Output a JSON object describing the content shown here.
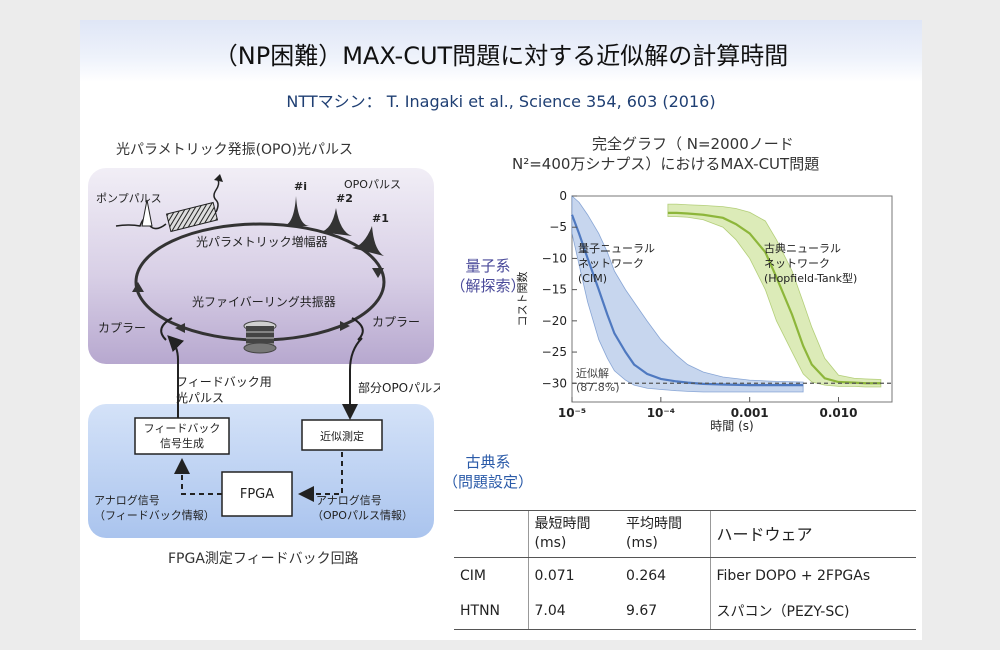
{
  "slide": {
    "title": "（NP困難）MAX-CUT問題に対する近似解の計算時間",
    "subtitle": "NTTマシン：  T. Inagaki et al., Science 354, 603 (2016)"
  },
  "opo_diagram": {
    "title": "光パラメトリック発振(OPO)光パルス",
    "pump_pulse": "ポンプパルス",
    "opo_pulse": "OPOパルス",
    "pulse_i": "#i",
    "pulse_2": "#2",
    "pulse_1": "#1",
    "amplifier": "光パラメトリック増幅器",
    "ring": "光ファイバーリング共振器",
    "coupler_left": "カプラー",
    "coupler_right": "カプラー",
    "feedback_light_1": "フィードバック用",
    "feedback_light_2": "光パルス",
    "partial_opo": "部分OPOパルス",
    "feedback_gen_1": "フィードバック",
    "feedback_gen_2": "信号生成",
    "approx_measure": "近似測定",
    "fpga": "FPGA",
    "analog_left_1": "アナログ信号",
    "analog_left_2": "（フィードバック情報）",
    "analog_right_1": "アナログ信号",
    "analog_right_2": "（OPOパルス情報）",
    "caption": "FPGA測定フィードバック回路"
  },
  "labels": {
    "quantum_1": "量子系",
    "quantum_2": "（解探索）",
    "classical_1": "古典系",
    "classical_2": "（問題設定）"
  },
  "graph_title": {
    "line1": "完全グラフ（ N=2000ノード",
    "line2": "N²=400万シナプス）におけるMAX-CUT問題"
  },
  "chart_data": {
    "type": "line",
    "xscale": "log",
    "xlabel": "時間 (s)",
    "ylabel": "コスト関数",
    "xlim": [
      1e-05,
      0.04
    ],
    "ylim": [
      -33,
      0
    ],
    "xticks": [
      {
        "value": 1e-05,
        "label": "10⁻⁵"
      },
      {
        "value": 0.0001,
        "label": "10⁻⁴"
      },
      {
        "value": 0.001,
        "label": "0.001"
      },
      {
        "value": 0.01,
        "label": "0.010"
      }
    ],
    "yticks": [
      0,
      -5,
      -10,
      -15,
      -20,
      -25,
      -30
    ],
    "reference_line": {
      "y": -30,
      "label_1": "近似解",
      "label_2": "(87.8%)"
    },
    "series": [
      {
        "name_1": "量子ニューラル",
        "name_2": "ネットワーク",
        "name_3": "(CIM)",
        "color": "#4f79c0",
        "band_color": "#c7d6ee",
        "x": [
          1e-05,
          1.2e-05,
          1.5e-05,
          2e-05,
          2.5e-05,
          3e-05,
          4e-05,
          5e-05,
          7e-05,
          0.0001,
          0.00015,
          0.0002,
          0.0003,
          0.0005,
          0.001,
          0.002,
          0.004
        ],
        "y": [
          -3,
          -6,
          -10,
          -15,
          -19,
          -22,
          -25,
          -27,
          -28.5,
          -29.3,
          -29.7,
          -29.9,
          -30.1,
          -30.2,
          -30.3,
          -30.3,
          -30.3
        ],
        "upper": [
          0,
          -1,
          -3,
          -6,
          -9,
          -12,
          -15,
          -17,
          -20,
          -23,
          -25.5,
          -27,
          -28.2,
          -29,
          -29.5,
          -29.7,
          -29.8
        ],
        "lower": [
          -6,
          -11,
          -17,
          -23,
          -26,
          -28,
          -29.5,
          -30.3,
          -30.8,
          -31,
          -31.2,
          -31.3,
          -31.4,
          -31.4,
          -31.4,
          -31.4,
          -31.4
        ]
      },
      {
        "name_1": "古典ニューラル",
        "name_2": "ネットワーク",
        "name_3": "(Hopfield-Tank型)",
        "color": "#8db63a",
        "band_color": "#dcebb8",
        "x": [
          0.00012,
          0.00015,
          0.0002,
          0.0003,
          0.0005,
          0.0007,
          0.001,
          0.0015,
          0.002,
          0.003,
          0.004,
          0.005,
          0.007,
          0.01,
          0.015,
          0.02,
          0.03
        ],
        "y": [
          -2.7,
          -2.7,
          -2.8,
          -3.0,
          -3.5,
          -4.5,
          -6,
          -9,
          -13,
          -19,
          -24,
          -27,
          -29.2,
          -29.8,
          -29.9,
          -30,
          -30
        ],
        "upper": [
          -1.3,
          -1.3,
          -1.4,
          -1.5,
          -1.7,
          -2,
          -2.6,
          -4,
          -7,
          -12,
          -17,
          -21,
          -26,
          -28.7,
          -29.2,
          -29.3,
          -29.4
        ],
        "lower": [
          -3.3,
          -3.3,
          -3.4,
          -3.8,
          -5,
          -7,
          -10,
          -15,
          -20,
          -25,
          -28.5,
          -29.8,
          -30.3,
          -30.5,
          -30.5,
          -30.6,
          -30.6
        ]
      }
    ]
  },
  "results_table": {
    "headers": {
      "col1_1": "最短時間",
      "col1_2": "(ms)",
      "col2_1": "平均時間",
      "col2_2": "(ms)",
      "col3": "ハードウェア"
    },
    "rows": [
      {
        "name": "CIM",
        "min": "0.071",
        "avg": "0.264",
        "hardware": "Fiber DOPO + 2FPGAs"
      },
      {
        "name": "HTNN",
        "min": "7.04",
        "avg": "9.67",
        "hardware": "スパコン（PEZY-SC)"
      }
    ]
  }
}
